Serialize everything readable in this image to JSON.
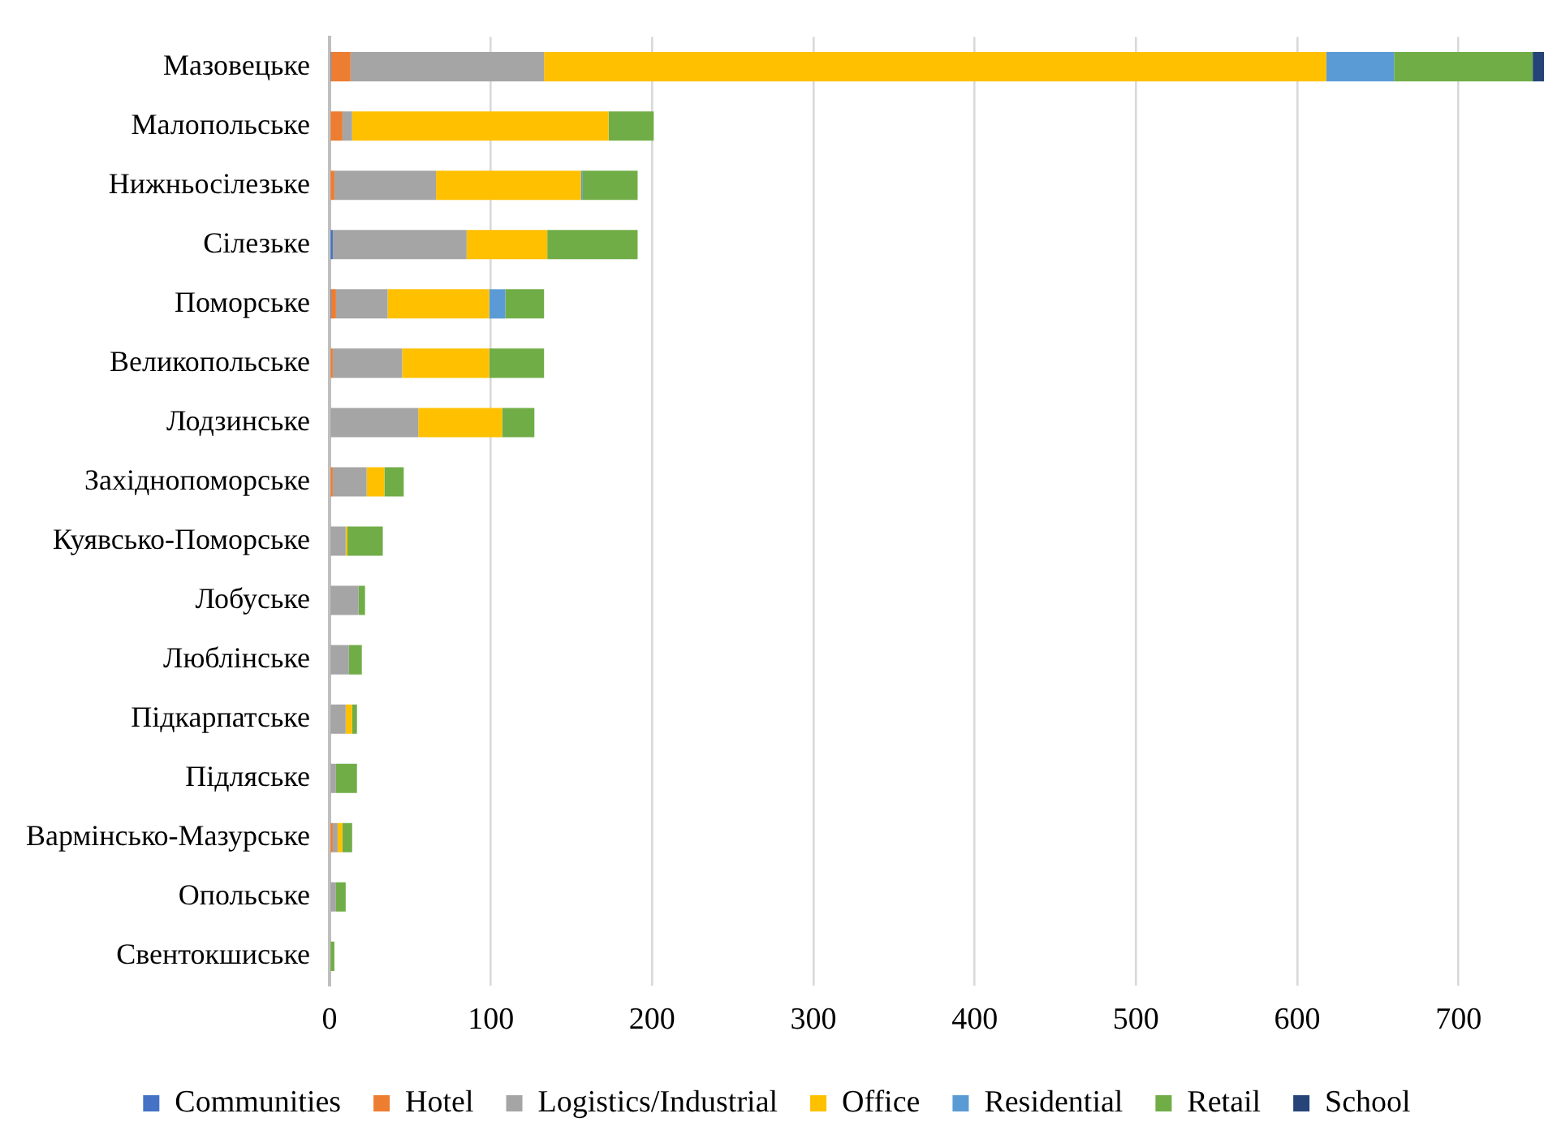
{
  "chart_data": {
    "type": "bar",
    "orientation": "horizontal",
    "stacked": true,
    "categories": [
      "Мазовецьке",
      "Малопольське",
      "Нижньосілезьке",
      "Сілезьке",
      "Поморське",
      "Великопольське",
      "Лодзинське",
      "Західнопоморське",
      "Куявсько-Поморське",
      "Лобуське",
      "Люблінське",
      "Підкарпатське",
      "Підляське",
      "Вармінсько-Мазурське",
      "Опольське",
      "Свентокшиське"
    ],
    "series": [
      {
        "name": "Communities",
        "color": "#4472c4",
        "values": [
          1,
          0,
          0,
          2,
          1,
          0,
          0,
          0,
          0,
          0,
          0,
          0,
          0,
          0,
          0,
          0
        ]
      },
      {
        "name": "Hotel",
        "color": "#ed7d31",
        "values": [
          12,
          8,
          3,
          0,
          3,
          2,
          0,
          2,
          0,
          0,
          0,
          0,
          0,
          2,
          0,
          0
        ]
      },
      {
        "name": "Logistics/Industrial",
        "color": "#a5a5a5",
        "values": [
          120,
          6,
          63,
          83,
          32,
          43,
          55,
          21,
          10,
          18,
          12,
          10,
          4,
          3,
          4,
          null
        ]
      },
      {
        "name": "Office",
        "color": "#ffc000",
        "values": [
          485,
          159,
          90,
          50,
          63,
          54,
          52,
          11,
          1,
          0,
          0,
          4,
          0,
          3,
          0,
          0
        ]
      },
      {
        "name": "Residential",
        "color": "#5b9bd5",
        "values": [
          42,
          0,
          1,
          0,
          10,
          0,
          0,
          0,
          0,
          0,
          0,
          0,
          0,
          0,
          0,
          0
        ]
      },
      {
        "name": "Retail",
        "color": "#70ad47",
        "values": [
          86,
          28,
          34,
          56,
          24,
          34,
          20,
          12,
          22,
          4,
          8,
          3,
          13,
          6,
          6,
          3
        ]
      },
      {
        "name": "School",
        "color": "#264478",
        "values": [
          7,
          0,
          0,
          0,
          0,
          0,
          0,
          0,
          0,
          0,
          0,
          0,
          0,
          0,
          0,
          0
        ]
      }
    ],
    "xlim": [
      0,
      755
    ],
    "xticks": [
      0,
      100,
      200,
      300,
      400,
      500,
      600,
      700
    ],
    "grid": "x",
    "legend": "bottom"
  }
}
